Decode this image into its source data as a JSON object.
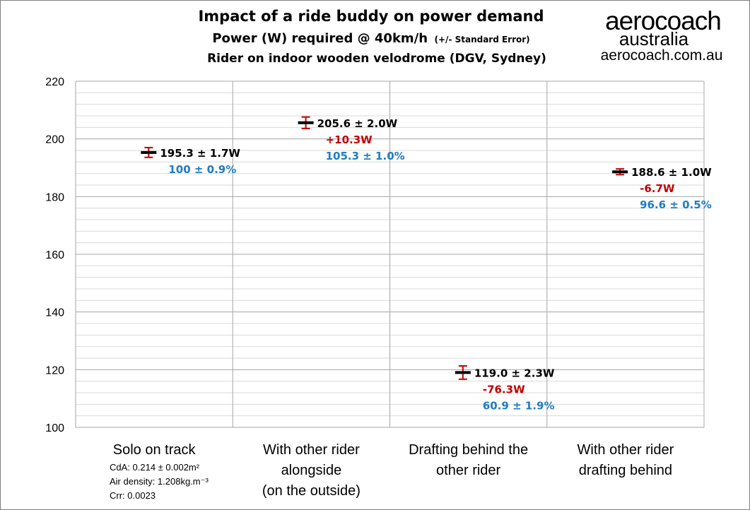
{
  "header": {
    "title": "Impact of a ride buddy on power demand",
    "subtitle_main": "Power (W) required @ 40km/h",
    "subtitle_small": "(+/- Standard Error)",
    "subtitle2": "Rider on indoor wooden velodrome (DGV, Sydney)"
  },
  "logo": {
    "line1": "aerocoach",
    "line2": "australia",
    "line3": "aerocoach.com.au"
  },
  "notes": {
    "cda": "CdA: 0.214 ± 0.002m²",
    "air_density": "Air density: 1.208kg.m⁻³",
    "crr": "Crr: 0.0023"
  },
  "chart_data": {
    "type": "scatter",
    "title": "Impact of a ride buddy on power demand",
    "ylim": [
      100,
      220
    ],
    "ytick_step": 20,
    "yticks": [
      "100",
      "120",
      "140",
      "160",
      "180",
      "200",
      "220"
    ],
    "minor_grid_step": 4,
    "grid": true,
    "categories": [
      [
        "Solo on track"
      ],
      [
        "With other rider",
        "alongside",
        "(on the outside)"
      ],
      [
        "Drafting behind the",
        "other rider"
      ],
      [
        "With other rider",
        "drafting behind"
      ]
    ],
    "points": [
      {
        "value": 195.3,
        "error": 1.7,
        "label": "195.3 ± 1.7W",
        "diff": "",
        "pct": "100 ± 0.9%"
      },
      {
        "value": 205.6,
        "error": 2.0,
        "label": "205.6 ± 2.0W",
        "diff": "+10.3W",
        "pct": "105.3 ± 1.0%"
      },
      {
        "value": 119.0,
        "error": 2.3,
        "label": "119.0 ± 2.3W",
        "diff": "-76.3W",
        "pct": "60.9 ± 1.9%"
      },
      {
        "value": 188.6,
        "error": 1.0,
        "label": "188.6 ± 1.0W",
        "diff": "-6.7W",
        "pct": "96.6 ± 0.5%"
      }
    ],
    "colors": {
      "marker": "#000000",
      "error_bar": "#c00000",
      "diff": "#c00000",
      "pct": "#1f7cc1",
      "grid_major": "#a6a6a6",
      "grid_minor": "#d9d9d9"
    }
  }
}
